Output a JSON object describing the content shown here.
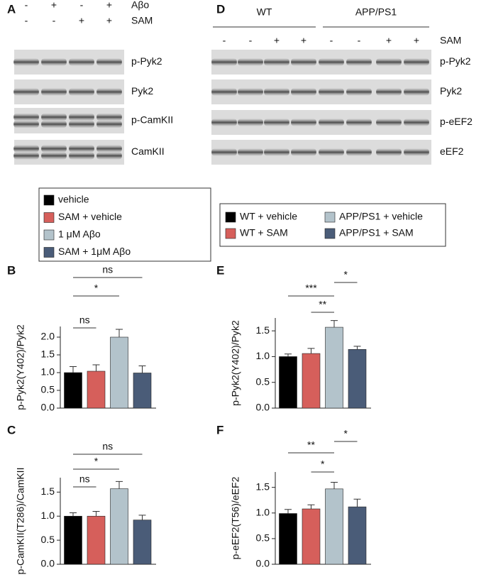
{
  "panel_labels": [
    "A",
    "B",
    "C",
    "D",
    "E",
    "F"
  ],
  "blots": [
    {
      "conditions": [
        {
          "label": "Aβo",
          "marks": [
            "-",
            "+",
            "-",
            "+"
          ]
        },
        {
          "label": "SAM",
          "marks": [
            "-",
            "-",
            "+",
            "+"
          ]
        }
      ],
      "rows": [
        "p-Pyk2",
        "Pyk2",
        "p-CamKII",
        "CamKII"
      ]
    },
    {
      "groups": [
        "WT",
        "APP/PS1"
      ],
      "conditions": [
        {
          "label": "SAM",
          "marks": [
            "-",
            "-",
            "+",
            "+",
            "-",
            "-",
            "+",
            "+"
          ]
        }
      ],
      "rows": [
        "p-Pyk2",
        "Pyk2",
        "p-eEF2",
        "eEF2"
      ]
    }
  ],
  "legends": [
    {
      "items": [
        {
          "name": "vehicle",
          "color": "#000000"
        },
        {
          "name": "SAM + vehicle",
          "color": "#d65f5b"
        },
        {
          "name": "1 μM Aβo",
          "color": "#b3c3cb"
        },
        {
          "name": "SAM + 1μM Aβo",
          "color": "#4a5c78"
        }
      ]
    },
    {
      "items": [
        {
          "name": "WT + vehicle",
          "color": "#000000"
        },
        {
          "name": "WT + SAM",
          "color": "#d65f5b"
        },
        {
          "name": "APP/PS1 + vehicle",
          "color": "#b3c3cb"
        },
        {
          "name": "APP/PS1 + SAM",
          "color": "#4a5c78"
        }
      ]
    }
  ],
  "chart_data": [
    {
      "type": "bar",
      "ylabel": "p-Pyk2(Y402)/Pyk2",
      "categories": [
        null,
        null,
        null,
        null
      ],
      "values": [
        1.0,
        1.04,
        2.0,
        0.99
      ],
      "errors": [
        0.17,
        0.18,
        0.22,
        0.2
      ],
      "colors": [
        "#000000",
        "#d65f5b",
        "#b3c3cb",
        "#4a5c78"
      ],
      "ylim": [
        0,
        2.3
      ],
      "yticks": [
        {
          "value": 0,
          "label": "0.0"
        },
        {
          "value": 0.5,
          "label": "0.5"
        },
        {
          "value": 1,
          "label": "1.0"
        },
        {
          "value": 1.5,
          "label": "1.5"
        },
        {
          "value": 2,
          "label": "2.0"
        }
      ],
      "annotations": [
        "ns",
        "*",
        "ns"
      ]
    },
    {
      "type": "bar",
      "ylabel": "p-CamKII(T286)/CamKII",
      "categories": [
        null,
        null,
        null,
        null
      ],
      "values": [
        1.0,
        1.0,
        1.57,
        0.92
      ],
      "errors": [
        0.07,
        0.1,
        0.15,
        0.1
      ],
      "colors": [
        "#000000",
        "#d65f5b",
        "#b3c3cb",
        "#4a5c78"
      ],
      "ylim": [
        0,
        1.8
      ],
      "yticks": [
        {
          "value": 0,
          "label": "0.0"
        },
        {
          "value": 0.5,
          "label": "0.5"
        },
        {
          "value": 1,
          "label": "1.0"
        },
        {
          "value": 1.5,
          "label": "1.5"
        }
      ],
      "annotations": [
        "ns",
        "*",
        "ns"
      ]
    },
    {
      "type": "bar",
      "ylabel": "p-Pyk2(Y402)/Pyk2",
      "categories": [
        null,
        null,
        null,
        null
      ],
      "values": [
        1.0,
        1.06,
        1.57,
        1.14
      ],
      "errors": [
        0.05,
        0.1,
        0.13,
        0.06
      ],
      "colors": [
        "#000000",
        "#d65f5b",
        "#b3c3cb",
        "#4a5c78"
      ],
      "ylim": [
        0,
        1.75
      ],
      "yticks": [
        {
          "value": 0,
          "label": "0.0"
        },
        {
          "value": 0.5,
          "label": "0.5"
        },
        {
          "value": 1,
          "label": "1.0"
        },
        {
          "value": 1.5,
          "label": "1.5"
        }
      ],
      "annotations": [
        "***",
        "**",
        "*"
      ]
    },
    {
      "type": "bar",
      "ylabel": "p-eEF2(T56)/eEF2",
      "categories": [
        null,
        null,
        null,
        null
      ],
      "values": [
        0.99,
        1.08,
        1.47,
        1.12
      ],
      "errors": [
        0.08,
        0.08,
        0.13,
        0.15
      ],
      "colors": [
        "#000000",
        "#d65f5b",
        "#b3c3cb",
        "#4a5c78"
      ],
      "ylim": [
        0,
        1.8
      ],
      "yticks": [
        {
          "value": 0,
          "label": "0.0"
        },
        {
          "value": 0.5,
          "label": "0.5"
        },
        {
          "value": 1,
          "label": "1.0"
        },
        {
          "value": 1.5,
          "label": "1.5"
        }
      ],
      "annotations": [
        "**",
        "*",
        "*"
      ]
    }
  ]
}
